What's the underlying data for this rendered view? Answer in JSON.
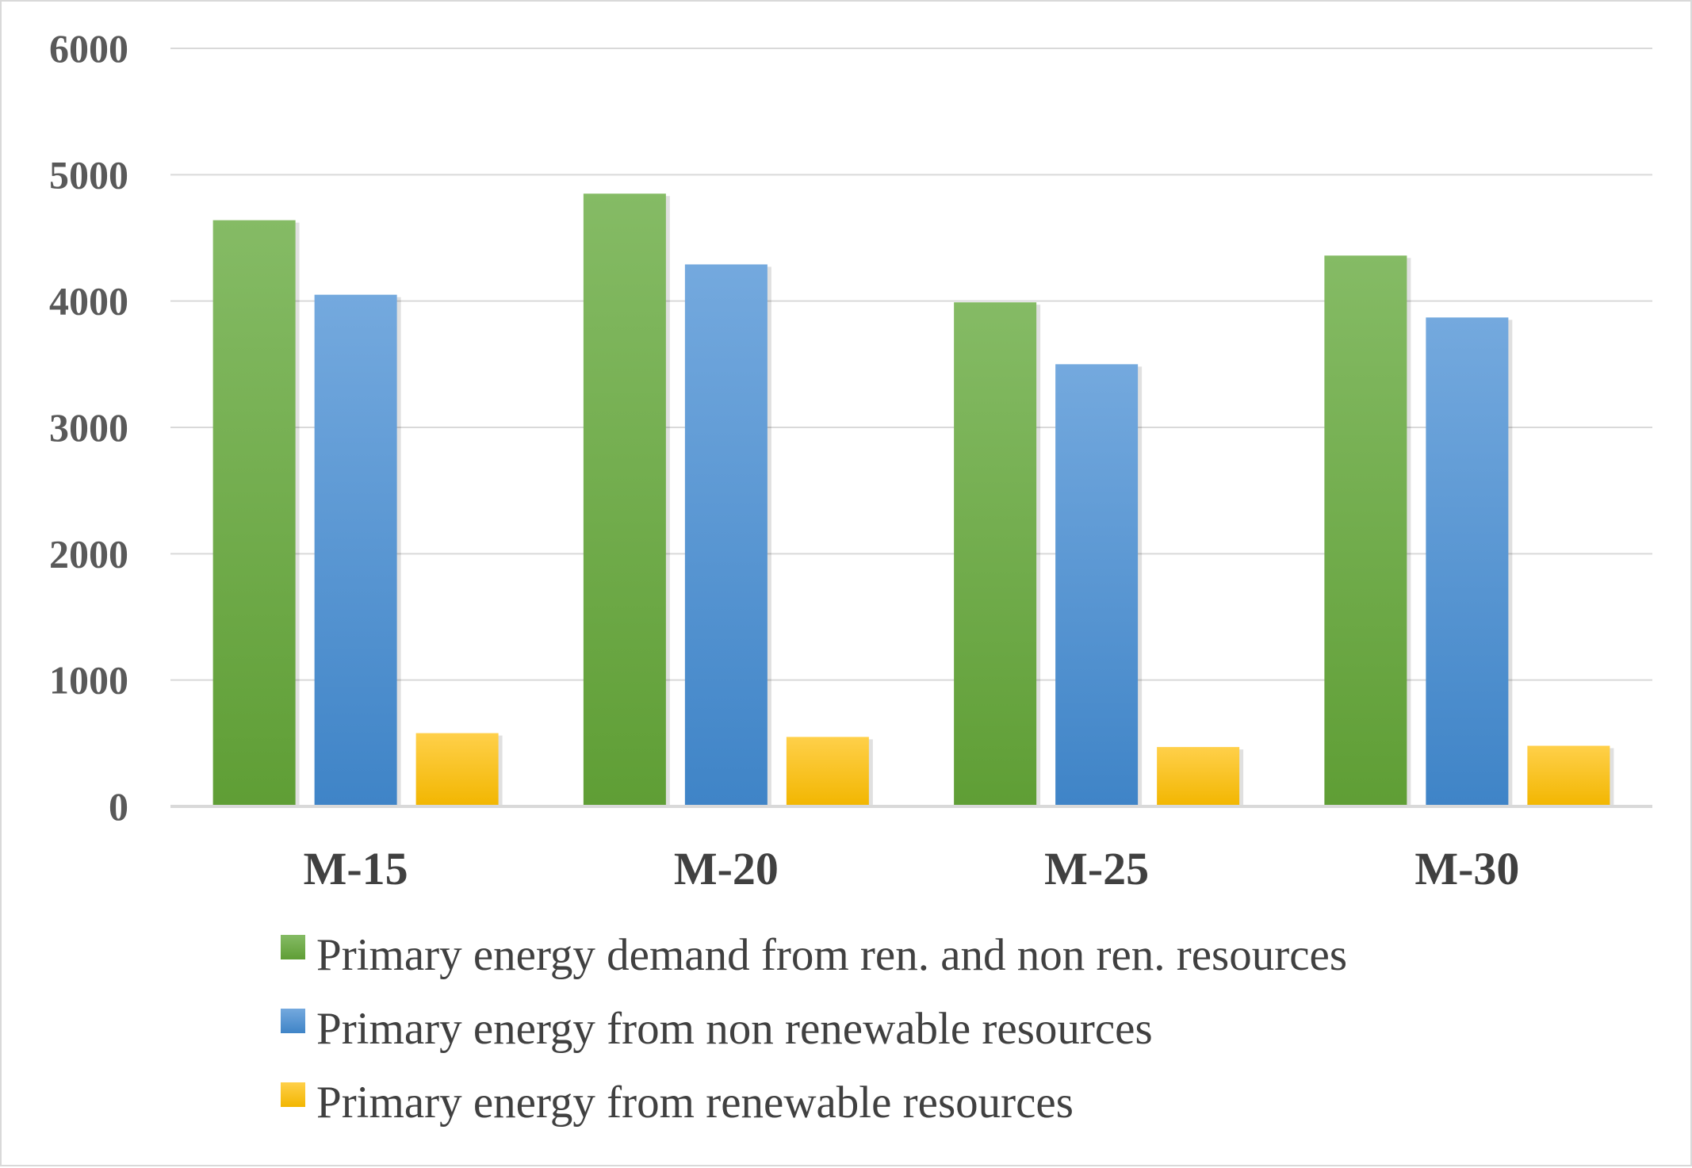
{
  "chart_data": {
    "type": "bar",
    "title": "",
    "xlabel": "",
    "ylabel": "",
    "categories": [
      "M-15",
      "M-20",
      "M-25",
      "M-30"
    ],
    "ylim": [
      0,
      6000
    ],
    "yticks": [
      0,
      1000,
      2000,
      3000,
      4000,
      5000,
      6000
    ],
    "grid": "horizontal",
    "legend_position": "bottom",
    "series": [
      {
        "name": "Primary energy demand from ren. and non ren. resources",
        "color_top": "#85bb65",
        "color_bottom": "#5f9e35",
        "values": [
          4640,
          4850,
          3990,
          4360
        ]
      },
      {
        "name": "Primary energy from non renewable resources",
        "color_top": "#74a9de",
        "color_bottom": "#3f84c7",
        "values": [
          4050,
          4290,
          3500,
          3870
        ]
      },
      {
        "name": "Primary energy from renewable resources",
        "color_top": "#ffd04a",
        "color_bottom": "#f2b600",
        "values": [
          580,
          550,
          470,
          480
        ]
      }
    ]
  }
}
